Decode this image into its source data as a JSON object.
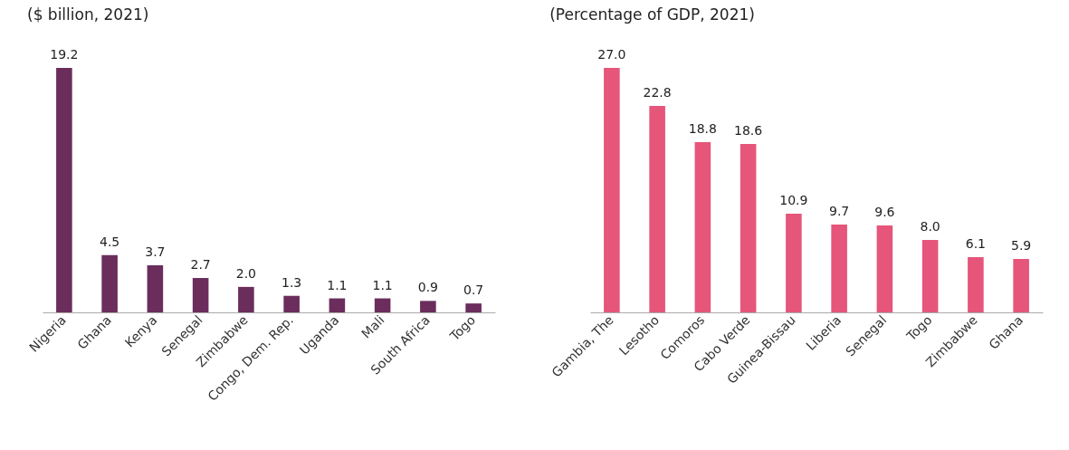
{
  "chart_data": [
    {
      "type": "bar",
      "title": "($ billion, 2021)",
      "categories": [
        "Nigeria",
        "Ghana",
        "Kenya",
        "Senegal",
        "Zimbabwe",
        "Congo, Dem. Rep.",
        "Uganda",
        "Mali",
        "South Africa",
        "Togo"
      ],
      "values": [
        19.2,
        4.5,
        3.7,
        2.7,
        2.0,
        1.3,
        1.1,
        1.1,
        0.9,
        0.7
      ],
      "color": "#6b2d5c",
      "value_labels": [
        "19.2",
        "4.5",
        "3.7",
        "2.7",
        "2.0",
        "1.3",
        "1.1",
        "1.1",
        "0.9",
        "0.7"
      ]
    },
    {
      "type": "bar",
      "title": "(Percentage of GDP, 2021)",
      "categories": [
        "Gambia, The",
        "Lesotho",
        "Comoros",
        "Cabo Verde",
        "Guinea-Bissau",
        "Liberia",
        "Senegal",
        "Togo",
        "Zimbabwe",
        "Ghana"
      ],
      "values": [
        27.0,
        22.8,
        18.8,
        18.6,
        10.9,
        9.7,
        9.6,
        8.0,
        6.1,
        5.9
      ],
      "color": "#e5567a",
      "value_labels": [
        "27.0",
        "22.8",
        "18.8",
        "18.6",
        "10.9",
        "9.7",
        "9.6",
        "8.0",
        "6.1",
        "5.9"
      ]
    }
  ]
}
